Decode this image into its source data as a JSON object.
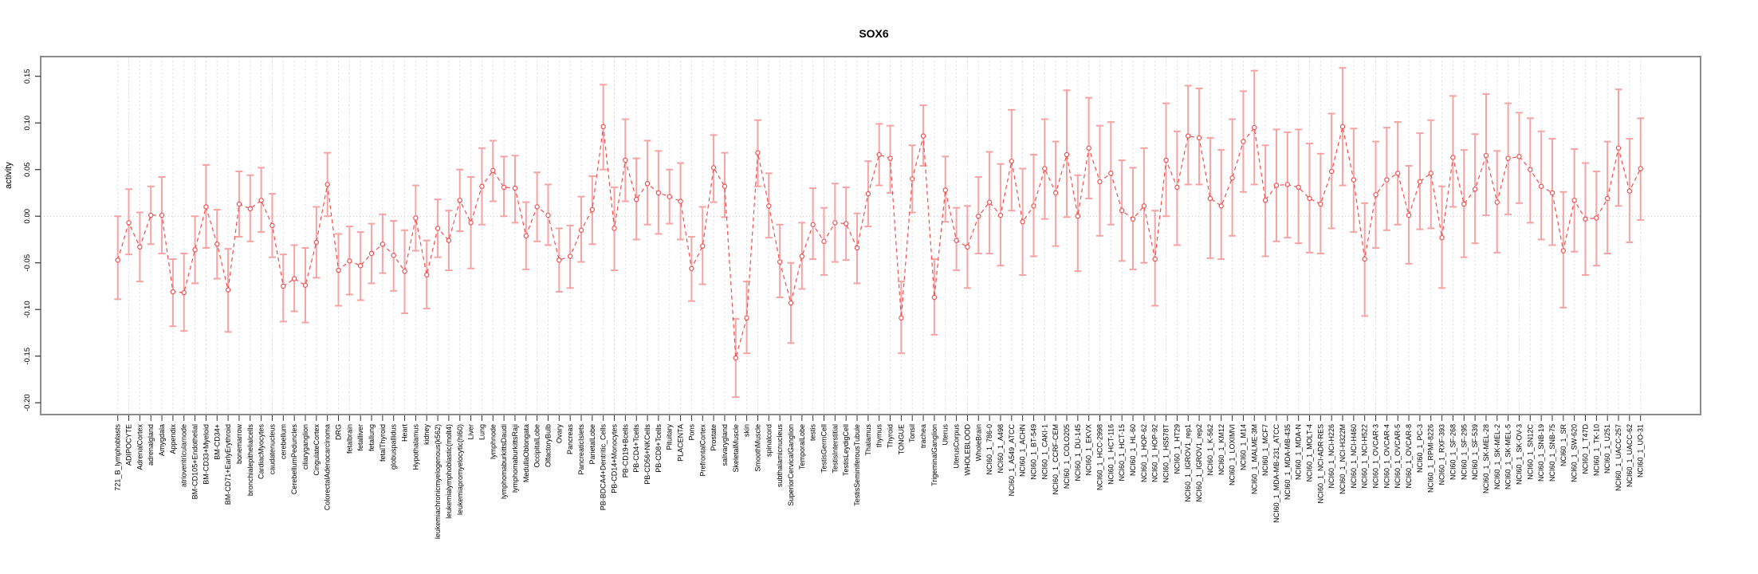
{
  "title": "SOX6",
  "ylabel": "activity",
  "colors": {
    "point_line": "#f04f4f",
    "error_bar": "#f5a3a3",
    "gridline": "#dcdcdc",
    "zero_line": "#c8c8c8",
    "box_border": "#8c8c8c",
    "tick": "#333333",
    "text": "#000000",
    "background": "#ffffff"
  },
  "y_axis": {
    "tick_labels": [
      "-0.20",
      "-0.15",
      "-0.10",
      "-0.05",
      "0.00",
      "0.05",
      "0.10",
      "0.15"
    ],
    "tick_values": [
      -0.2,
      -0.15,
      -0.1,
      -0.05,
      0.0,
      0.05,
      0.1,
      0.15
    ]
  },
  "chart_data": {
    "type": "scatter",
    "title": "SOX6",
    "xlabel": "",
    "ylabel": "activity",
    "ylim": [
      -0.213,
      0.172
    ],
    "grid": "vertical dashed gridline at every category; dotted horizontal line at y=0",
    "legend": "none",
    "error_bars": true,
    "marker": "open-circle",
    "line_style": "dashed",
    "categories": [
      "721_B_lymphoblasts",
      "ADIPOCYTE",
      "AdrenalCortex",
      "adrenalgland",
      "Amygdala",
      "Appendix",
      "atrioventricularnode",
      "BM-CD105+Endothelial",
      "BM-CD33+Myeloid",
      "BM-CD34+",
      "BM-CD71+EarlyErythroid",
      "bonemarrow",
      "bronchialepithelialcells",
      "CardiacMyocytes",
      "caudatenucleus",
      "cerebellum",
      "CerebellumPeduncles",
      "ciliaryganglion",
      "CingulateCortex",
      "ColorectalAdenocarcinoma",
      "DRG",
      "fetalbrain",
      "fetalliver",
      "fetallung",
      "fetalThyroid",
      "globuspallidus",
      "Heart",
      "Hypothalamus",
      "kidney",
      "leukemiachronicmyelogenous(k562)",
      "leukemialymphoblastic(molt4)",
      "leukemiapromyelocytic(hl60)",
      "Liver",
      "Lung",
      "lymphnode",
      "lymphomaburkittsDaudi",
      "lymphomaburkittsRaji",
      "MedullaOblongata",
      "OccipitalLobe",
      "OlfactoryBulb",
      "Ovary",
      "Pancreas",
      "PancreaticIslets",
      "ParietalLobe",
      "PB-BDCA4+Dentritic_Cells",
      "PB-CD14+Monocytes",
      "PB-CD19+Bcells",
      "PB-CD4+Tcells",
      "PB-CD56+NKCells",
      "PB-CD8+Tcells",
      "Pituitary",
      "PLACENTA",
      "Pons",
      "PrefrontalCortex",
      "Prostate",
      "salivarygland",
      "SkeletalMuscle",
      "skin",
      "SmoothMuscle",
      "spinalcord",
      "subthalamicnucleus",
      "SuperiorCervicalGanglion",
      "TemporalLobe",
      "testis",
      "TestisGermCell",
      "TestisInterstitial",
      "TestisLeydigCell",
      "TestisSeminiferousTubule",
      "Thalamus",
      "thymus",
      "Thyroid",
      "TONGUE",
      "Tonsil",
      "trachea",
      "TrigeminalGanglion",
      "Uterus",
      "UterusCorpus",
      "WHOLEBLOOD",
      "WholeBrain",
      "NCI60_1_786-0",
      "NCI60_1_A498",
      "NCI60_1_A549_ATCC",
      "NCI60_1_ACHN",
      "NCI60_1_BT-549",
      "NCI60_1_CAKI-1",
      "NCI60_1_CCRF-CEM",
      "NCI60_1_COLO205",
      "NCI60_1_DU-145",
      "NCI60_1_EKVX",
      "NCI60_1_HCC-2998",
      "NCI60_1_HCT-116",
      "NCI60_1_HCT-15",
      "NCI60_1_HL-60",
      "NCI60_1_HOP-62",
      "NCI60_1_HOP-92",
      "NCI60_1_HS578T",
      "NCI60_1_HT29",
      "NCI60_1_IGROV1_rep1",
      "NCI60_1_IGROV1_rep2",
      "NCI60_1_K-562",
      "NCI60_1_KM12",
      "NCI60_1_LOXIMVI",
      "NCI60_1_M14",
      "NCI60_1_MALME-3M",
      "NCI60_1_MCF7",
      "NCI60_1_MDA-MB-231_ATCC",
      "NCI60_1_MDA-MB-435",
      "NCI60_1_MDA-N",
      "NCI60_1_MOLT-4",
      "NCI60_1_NCI-ADR-RES",
      "NCI60_1_NCI-H226",
      "NCI60_1_NCI-H322M",
      "NCI60_1_NCI-H460",
      "NCI60_1_NCI-H522",
      "NCI60_1_OVCAR-3",
      "NCI60_1_OVCAR-4",
      "NCI60_1_OVCAR-5",
      "NCI60_1_OVCAR-8",
      "NCI60_1_PC-3",
      "NCI60_1_RPMI-8226",
      "NCI60_1_RXF-393",
      "NCI60_1_SF-268",
      "NCI60_1_SF-295",
      "NCI60_1_SF-539",
      "NCI60_1_SK-MEL-28",
      "NCI60_1_SK-MEL-2",
      "NCI60_1_SK-MEL-5",
      "NCI60_1_SK-OV-3",
      "NCI60_1_SN12C",
      "NCI60_1_SNB-19",
      "NCI60_1_SNB-75",
      "NCI60_1_SR",
      "NCI60_1_SW-620",
      "NCI60_1_T47D",
      "NCI60_1_TK-10",
      "NCI60_1_U251",
      "NCI60_1_UACC-257",
      "NCI60_1_UACC-62",
      "NCI60_1_UO-31"
    ],
    "values": [
      -0.047,
      -0.007,
      -0.033,
      0.001,
      0.001,
      -0.081,
      -0.082,
      -0.036,
      0.01,
      -0.03,
      -0.079,
      0.013,
      0.008,
      0.017,
      -0.01,
      -0.075,
      -0.067,
      -0.074,
      -0.028,
      0.034,
      -0.058,
      -0.048,
      -0.053,
      -0.04,
      -0.03,
      -0.042,
      -0.059,
      -0.002,
      -0.063,
      -0.013,
      -0.026,
      0.017,
      -0.007,
      0.032,
      0.049,
      0.031,
      0.03,
      -0.021,
      0.01,
      0.001,
      -0.047,
      -0.043,
      -0.015,
      0.007,
      0.096,
      -0.013,
      0.06,
      0.018,
      0.035,
      0.025,
      0.021,
      0.016,
      -0.056,
      -0.032,
      0.052,
      0.032,
      -0.152,
      -0.109,
      0.068,
      0.011,
      -0.049,
      -0.093,
      -0.043,
      -0.009,
      -0.027,
      -0.007,
      -0.008,
      -0.034,
      0.024,
      0.066,
      0.062,
      -0.109,
      0.04,
      0.086,
      -0.087,
      0.028,
      -0.026,
      -0.033,
      0.0,
      0.015,
      0.001,
      0.059,
      -0.006,
      0.011,
      0.051,
      0.025,
      0.066,
      0.0,
      0.073,
      0.037,
      0.046,
      0.006,
      -0.003,
      0.011,
      -0.046,
      0.06,
      0.031,
      0.086,
      0.084,
      0.019,
      0.011,
      0.041,
      0.08,
      0.095,
      0.017,
      0.033,
      0.034,
      0.031,
      0.019,
      0.013,
      0.048,
      0.096,
      0.039,
      -0.046,
      0.023,
      0.039,
      0.046,
      0.001,
      0.037,
      0.046,
      -0.023,
      0.063,
      0.013,
      0.029,
      0.065,
      0.015,
      0.062,
      0.064,
      0.05,
      0.032,
      0.025,
      -0.037,
      0.017,
      -0.003,
      -0.002,
      0.019,
      0.073,
      0.027,
      0.051
    ],
    "lower": [
      -0.089,
      -0.041,
      -0.07,
      -0.03,
      -0.04,
      -0.118,
      -0.123,
      -0.072,
      -0.034,
      -0.067,
      -0.124,
      -0.022,
      -0.027,
      -0.017,
      -0.044,
      -0.113,
      -0.102,
      -0.114,
      -0.066,
      0.0,
      -0.096,
      -0.084,
      -0.09,
      -0.072,
      -0.061,
      -0.08,
      -0.104,
      -0.037,
      -0.099,
      -0.044,
      -0.058,
      -0.016,
      -0.056,
      -0.009,
      0.016,
      0.0,
      -0.007,
      -0.057,
      -0.027,
      -0.031,
      -0.081,
      -0.077,
      -0.049,
      -0.03,
      0.05,
      -0.058,
      0.016,
      -0.025,
      -0.009,
      -0.019,
      -0.008,
      -0.025,
      -0.091,
      -0.073,
      0.015,
      -0.001,
      -0.194,
      -0.147,
      0.032,
      -0.023,
      -0.087,
      -0.136,
      -0.078,
      -0.046,
      -0.063,
      -0.049,
      -0.047,
      -0.072,
      -0.011,
      0.033,
      0.025,
      -0.147,
      0.004,
      0.054,
      -0.127,
      -0.006,
      -0.058,
      -0.077,
      -0.04,
      -0.04,
      -0.053,
      0.006,
      -0.063,
      -0.043,
      -0.003,
      -0.032,
      -0.001,
      -0.059,
      0.019,
      -0.021,
      -0.009,
      -0.048,
      -0.057,
      -0.05,
      -0.096,
      0.0,
      -0.031,
      0.034,
      0.034,
      -0.045,
      -0.046,
      -0.021,
      0.026,
      0.034,
      -0.043,
      -0.027,
      -0.023,
      -0.029,
      -0.039,
      -0.04,
      -0.013,
      0.033,
      -0.017,
      -0.107,
      -0.034,
      -0.015,
      -0.009,
      -0.051,
      -0.014,
      -0.013,
      -0.077,
      0.01,
      -0.044,
      -0.029,
      0.001,
      -0.039,
      0.002,
      0.014,
      -0.007,
      -0.025,
      -0.031,
      -0.098,
      -0.038,
      -0.063,
      -0.053,
      -0.04,
      0.011,
      -0.028,
      -0.004
    ],
    "upper": [
      0.0,
      0.029,
      0.004,
      0.032,
      0.042,
      -0.046,
      -0.04,
      0.0,
      0.055,
      0.007,
      -0.035,
      0.048,
      0.044,
      0.052,
      0.024,
      -0.041,
      -0.031,
      -0.034,
      0.01,
      0.068,
      -0.019,
      -0.011,
      -0.017,
      -0.008,
      0.002,
      -0.005,
      -0.015,
      0.033,
      -0.026,
      0.018,
      0.006,
      0.05,
      0.042,
      0.073,
      0.081,
      0.064,
      0.065,
      0.015,
      0.047,
      0.034,
      -0.013,
      -0.01,
      0.021,
      0.043,
      0.141,
      0.031,
      0.104,
      0.062,
      0.081,
      0.07,
      0.05,
      0.057,
      -0.022,
      0.01,
      0.087,
      0.068,
      -0.11,
      -0.07,
      0.103,
      0.046,
      -0.009,
      -0.05,
      -0.007,
      0.03,
      0.009,
      0.035,
      0.031,
      0.003,
      0.059,
      0.099,
      0.097,
      -0.07,
      0.076,
      0.119,
      -0.046,
      0.064,
      0.009,
      0.011,
      0.042,
      0.069,
      0.056,
      0.114,
      0.051,
      0.066,
      0.104,
      0.08,
      0.135,
      0.044,
      0.127,
      0.097,
      0.101,
      0.06,
      0.052,
      0.073,
      0.006,
      0.121,
      0.091,
      0.14,
      0.137,
      0.084,
      0.071,
      0.104,
      0.134,
      0.156,
      0.076,
      0.093,
      0.09,
      0.093,
      0.078,
      0.067,
      0.11,
      0.159,
      0.094,
      0.014,
      0.08,
      0.095,
      0.101,
      0.054,
      0.089,
      0.103,
      0.032,
      0.129,
      0.071,
      0.088,
      0.131,
      0.07,
      0.121,
      0.111,
      0.105,
      0.091,
      0.083,
      0.026,
      0.072,
      0.057,
      0.048,
      0.08,
      0.136,
      0.083,
      0.105
    ]
  }
}
